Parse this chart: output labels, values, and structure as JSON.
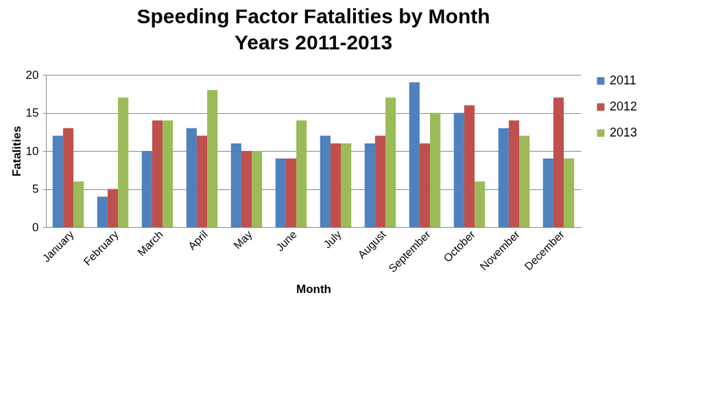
{
  "chart_data": {
    "type": "bar",
    "title": "Speeding Factor Fatalities by Month",
    "subtitle": "Years 2011-2013",
    "xlabel": "Month",
    "ylabel": "Fatalities",
    "categories": [
      "January",
      "February",
      "March",
      "April",
      "May",
      "June",
      "July",
      "August",
      "September",
      "October",
      "November",
      "December"
    ],
    "series": [
      {
        "name": "2011",
        "color": "#4f81bd",
        "values": [
          12,
          4,
          10,
          13,
          11,
          9,
          12,
          11,
          19,
          15,
          13,
          9
        ]
      },
      {
        "name": "2012",
        "color": "#c0504d",
        "values": [
          13,
          5,
          14,
          12,
          10,
          9,
          11,
          12,
          11,
          16,
          14,
          17
        ]
      },
      {
        "name": "2013",
        "color": "#9bbb59",
        "values": [
          6,
          17,
          14,
          18,
          10,
          14,
          11,
          17,
          15,
          6,
          12,
          9
        ]
      }
    ],
    "ylim": [
      0,
      20
    ],
    "yticks": [
      0,
      5,
      10,
      15,
      20
    ],
    "grid": "y",
    "legend": "right"
  }
}
